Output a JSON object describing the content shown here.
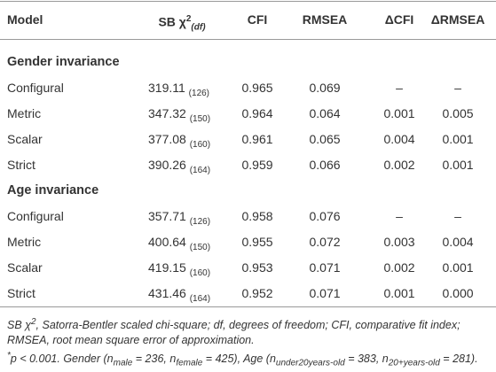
{
  "table": {
    "header": [
      "Model",
      {
        "text": "SB χ",
        "sup": "2",
        "sub": "(df)"
      },
      "CFI",
      "RMSEA",
      "ΔCFI",
      "ΔRMSEA"
    ],
    "groups": [
      {
        "title": "Gender invariance",
        "rows": [
          [
            "Configural",
            {
              "value": "319.11",
              "df": "(126)"
            },
            "0.965",
            "0.069",
            "–",
            "–"
          ],
          [
            "Metric",
            {
              "value": "347.32",
              "df": "(150)"
            },
            "0.964",
            "0.064",
            "0.001",
            "0.005"
          ],
          [
            "Scalar",
            {
              "value": "377.08",
              "df": "(160)"
            },
            "0.961",
            "0.065",
            "0.004",
            "0.001"
          ],
          [
            "Strict",
            {
              "value": "390.26",
              "df": "(164)"
            },
            "0.959",
            "0.066",
            "0.002",
            "0.001"
          ]
        ]
      },
      {
        "title": "Age invariance",
        "rows": [
          [
            "Configural",
            {
              "value": "357.71",
              "df": "(126)"
            },
            "0.958",
            "0.076",
            "–",
            "–"
          ],
          [
            "Metric",
            {
              "value": "400.64",
              "df": "(150)"
            },
            "0.955",
            "0.072",
            "0.003",
            "0.004"
          ],
          [
            "Scalar",
            {
              "value": "419.15",
              "df": "(160)"
            },
            "0.953",
            "0.071",
            "0.002",
            "0.001"
          ],
          [
            "Strict",
            {
              "value": "431.46",
              "df": "(164)"
            },
            "0.952",
            "0.071",
            "0.001",
            "0.000"
          ]
        ]
      }
    ]
  },
  "footnote": {
    "definitions": [
      {
        "text": "SB χ"
      },
      {
        "sup": "2"
      },
      {
        "text": ", Satorra-Bentler scaled chi-square; df, degrees of freedom; CFI, comparative fit index; RMSEA, root mean square error of approximation."
      }
    ],
    "notes": [
      {
        "sup": "*"
      },
      {
        "text": "p < 0.001. Gender (n"
      },
      {
        "sub": "male"
      },
      {
        "text": " = 236, n"
      },
      {
        "sub": "female"
      },
      {
        "text": " = 425), Age (n"
      },
      {
        "sub": "under20years-old"
      },
      {
        "text": " = 383, n"
      },
      {
        "sub": "20+years-old"
      },
      {
        "text": " = 281)."
      }
    ]
  }
}
